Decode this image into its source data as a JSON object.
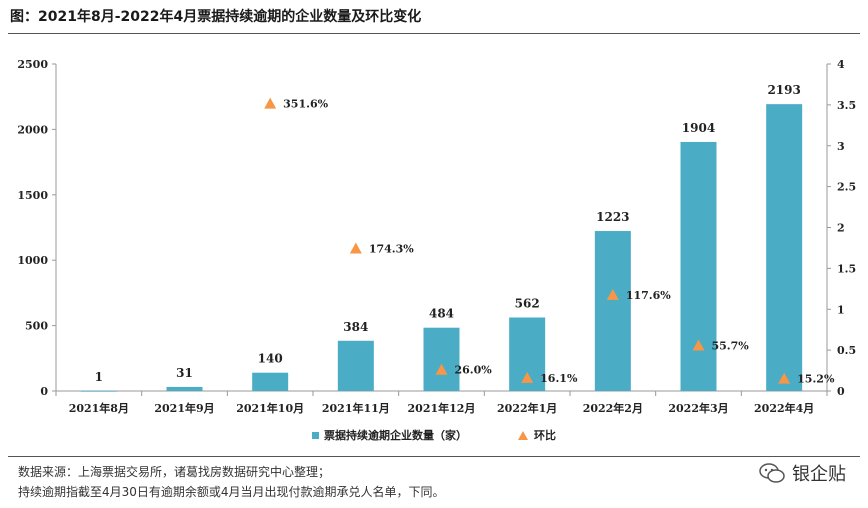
{
  "title": "图：2021年8月-2022年4月票据持续逾期的企业数量及环比变化",
  "source_line1": "数据来源：上海票据交易所，诸葛找房数据研究中心整理；",
  "source_line2": "持续逾期指截至4月30日有逾期余额或4月当月出现付款逾期承兑人名单，下同。",
  "watermark": "银企贴",
  "colors": {
    "bar": "#4bacc6",
    "marker": "#f79646"
  },
  "chart_data": {
    "type": "bar",
    "categories": [
      "2021年8月",
      "2021年9月",
      "2021年10月",
      "2021年11月",
      "2021年12月",
      "2022年1月",
      "2022年2月",
      "2022年3月",
      "2022年4月"
    ],
    "series": [
      {
        "name": "票据持续逾期企业数量（家）",
        "type": "bar",
        "axis": "left",
        "values": [
          1,
          31,
          140,
          384,
          484,
          562,
          1223,
          1904,
          2193
        ]
      },
      {
        "name": "环比",
        "type": "scatter",
        "axis": "right",
        "values": [
          null,
          null,
          3.516,
          1.743,
          0.26,
          0.161,
          1.176,
          0.557,
          0.152
        ],
        "labels": [
          "",
          "",
          "351.6%",
          "174.3%",
          "26.0%",
          "16.1%",
          "117.6%",
          "55.7%",
          "15.2%"
        ]
      }
    ],
    "y_left": {
      "ticks": [
        0,
        500,
        1000,
        1500,
        2000,
        2500
      ],
      "ylim": [
        0,
        2500
      ]
    },
    "y_right": {
      "ticks": [
        "0",
        "0.5",
        "1",
        "1.5",
        "2",
        "2.5",
        "3",
        "3.5",
        "4"
      ],
      "ylim": [
        0,
        4
      ]
    },
    "legend": "bottom-center"
  }
}
